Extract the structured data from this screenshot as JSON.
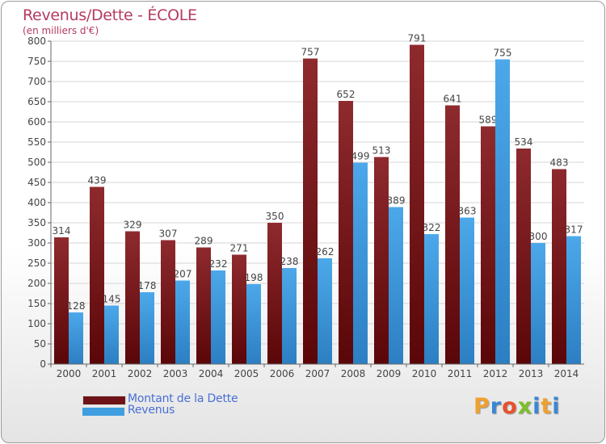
{
  "title": "Revenus/Dette - ÉCOLE",
  "subtitle": "(en milliers d'€)",
  "logo": {
    "text": "Proxiti",
    "letters": [
      "P",
      "r",
      "o",
      "x",
      "i",
      "t",
      "i"
    ],
    "colors": [
      "#f0a030",
      "#3a86d4",
      "#e8502a",
      "#7bbf2a",
      "#3a86d4",
      "#f0a030",
      "#3a86d4"
    ]
  },
  "legend": [
    {
      "label": "Montant de la Dette",
      "color": "#7a1c20"
    },
    {
      "label": "Revenus",
      "color": "#3f9ee0"
    }
  ],
  "chart_data": {
    "type": "bar",
    "title": "Revenus/Dette - ÉCOLE",
    "subtitle": "(en milliers d'€)",
    "categories": [
      "2000",
      "2001",
      "2002",
      "2003",
      "2004",
      "2005",
      "2006",
      "2007",
      "2008",
      "2009",
      "2010",
      "2011",
      "2012",
      "2013",
      "2014"
    ],
    "series": [
      {
        "name": "Montant de la Dette",
        "color": "#7a1c20",
        "values": [
          314,
          439,
          329,
          307,
          289,
          271,
          350,
          757,
          652,
          513,
          791,
          641,
          589,
          534,
          483
        ]
      },
      {
        "name": "Revenus",
        "color": "#3f9ee0",
        "values": [
          128,
          145,
          178,
          207,
          232,
          198,
          238,
          262,
          499,
          389,
          322,
          363,
          755,
          300,
          317
        ]
      }
    ],
    "ylim": [
      0,
      800
    ],
    "yticks": [
      0,
      50,
      100,
      150,
      200,
      250,
      300,
      350,
      400,
      450,
      500,
      550,
      600,
      650,
      700,
      750,
      800
    ],
    "grid": true,
    "legend_position": "bottom-left"
  }
}
